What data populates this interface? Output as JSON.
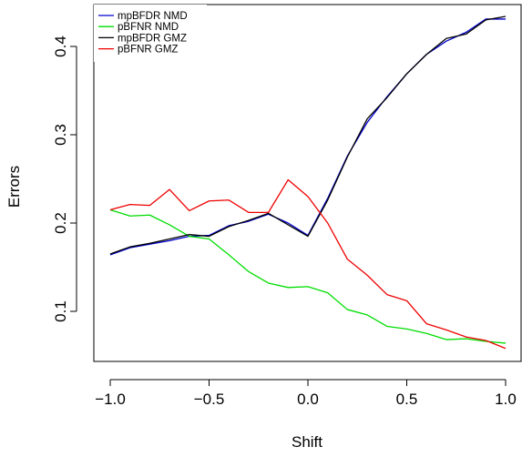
{
  "chart_data": {
    "type": "line",
    "title": "",
    "xlabel": "Shift",
    "ylabel": "Errors",
    "xlim": [
      -1.0,
      1.0
    ],
    "ylim": [
      0.05,
      0.44
    ],
    "grid": false,
    "legend_position": "top-left",
    "x_ticks": [
      -1.0,
      -0.5,
      0.0,
      0.5,
      1.0
    ],
    "x_tick_labels": [
      "−1.0",
      "−0.5",
      "0.0",
      "0.5",
      "1.0"
    ],
    "y_ticks": [
      0.1,
      0.2,
      0.3,
      0.4
    ],
    "y_tick_labels": [
      "0.1",
      "0.2",
      "0.3",
      "0.4"
    ],
    "x": [
      -1.0,
      -0.9,
      -0.8,
      -0.7,
      -0.6,
      -0.5,
      -0.4,
      -0.3,
      -0.2,
      -0.1,
      0.0,
      0.1,
      0.2,
      0.3,
      0.4,
      0.5,
      0.6,
      0.7,
      0.8,
      0.9,
      1.0
    ],
    "series": [
      {
        "name": "mpBFDR NMD",
        "color": "#0000cd",
        "values": [
          0.164,
          0.172,
          0.176,
          0.18,
          0.185,
          0.186,
          0.197,
          0.202,
          0.21,
          0.2,
          0.186,
          0.228,
          0.276,
          0.314,
          0.343,
          0.369,
          0.391,
          0.406,
          0.416,
          0.431,
          0.431
        ]
      },
      {
        "name": "pBFNR NMD",
        "color": "#00dd00",
        "values": [
          0.215,
          0.208,
          0.209,
          0.198,
          0.185,
          0.182,
          0.164,
          0.145,
          0.132,
          0.127,
          0.128,
          0.121,
          0.102,
          0.096,
          0.083,
          0.08,
          0.075,
          0.068,
          0.069,
          0.066,
          0.064
        ]
      },
      {
        "name": "mpBFDR GMZ",
        "color": "#000000",
        "values": [
          0.165,
          0.173,
          0.177,
          0.182,
          0.187,
          0.185,
          0.196,
          0.203,
          0.211,
          0.198,
          0.185,
          0.226,
          0.275,
          0.318,
          0.342,
          0.369,
          0.391,
          0.409,
          0.414,
          0.43,
          0.434
        ]
      },
      {
        "name": "pBFNR GMZ",
        "color": "#ee0000",
        "values": [
          0.215,
          0.221,
          0.22,
          0.238,
          0.214,
          0.225,
          0.226,
          0.212,
          0.212,
          0.249,
          0.23,
          0.2,
          0.159,
          0.141,
          0.119,
          0.112,
          0.086,
          0.079,
          0.071,
          0.067,
          0.058
        ]
      }
    ]
  }
}
